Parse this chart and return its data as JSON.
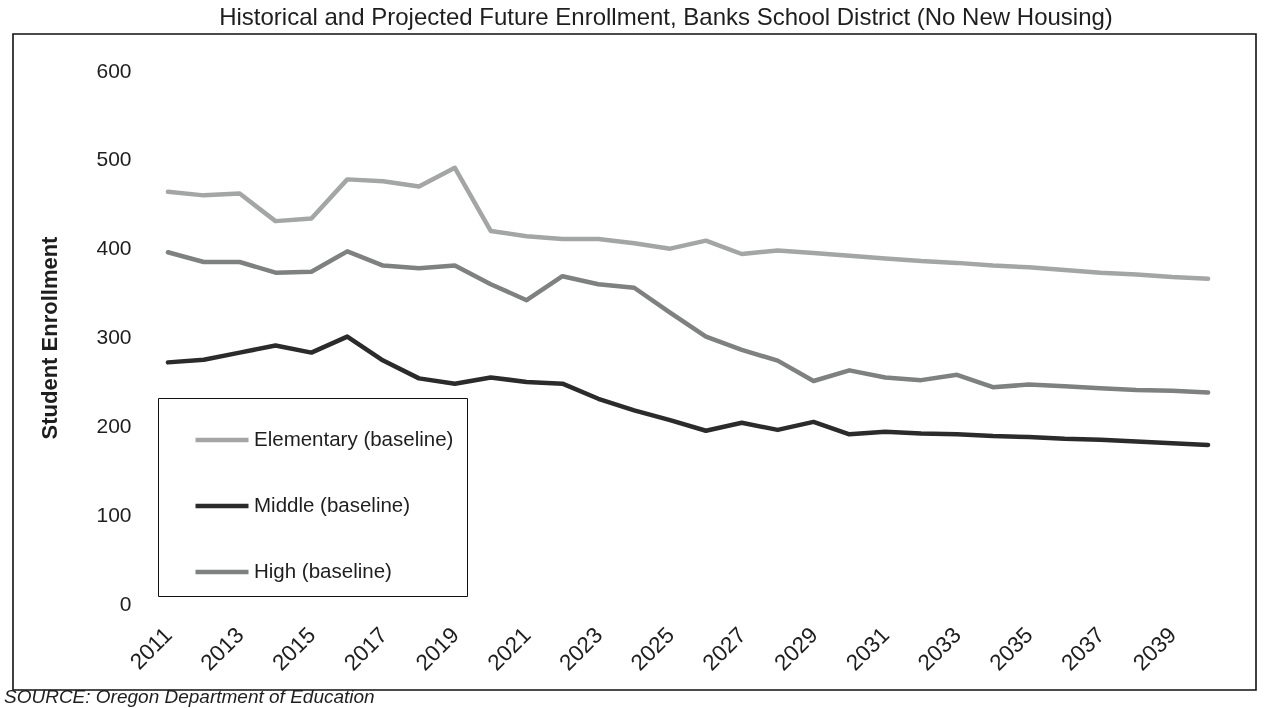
{
  "chart_data": {
    "type": "line",
    "title": "Historical and Projected Future Enrollment, Banks School District (No New Housing)",
    "ylabel": "Student Enrollment",
    "categories": [
      "2011",
      null,
      "2013",
      null,
      "2015",
      null,
      "2017",
      null,
      "2019",
      null,
      "2021",
      null,
      "2023",
      null,
      "2025",
      null,
      "2027",
      null,
      "2029",
      null,
      "2031",
      null,
      "2033",
      null,
      "2035",
      null,
      "2037",
      null,
      "2039",
      null
    ],
    "series": [
      {
        "name": "Elementary (baseline)",
        "color": "#a3a6a4",
        "values": [
          464,
          460,
          462,
          431,
          434,
          478,
          476,
          470,
          491,
          420,
          414,
          411,
          411,
          406,
          400,
          409,
          394,
          398,
          395,
          392,
          389,
          386,
          384,
          381,
          379,
          376,
          373,
          371,
          368,
          366
        ]
      },
      {
        "name": "Middle (baseline)",
        "color": "#2b2b2b",
        "values": [
          272,
          275,
          283,
          291,
          283,
          301,
          274,
          254,
          248,
          255,
          250,
          248,
          231,
          218,
          207,
          195,
          204,
          196,
          205,
          191,
          194,
          192,
          191,
          189,
          188,
          186,
          185,
          183,
          181,
          179
        ]
      },
      {
        "name": "High (baseline)",
        "color": "#7e817f",
        "values": [
          396,
          385,
          385,
          373,
          374,
          397,
          381,
          378,
          381,
          360,
          342,
          369,
          360,
          356,
          328,
          301,
          286,
          274,
          251,
          263,
          255,
          252,
          258,
          244,
          247,
          245,
          243,
          241,
          240,
          238
        ]
      }
    ],
    "ylim": [
      0,
      600
    ],
    "yticks": [
      0,
      100,
      200,
      300,
      400,
      500,
      600
    ],
    "legend": "bottom left",
    "annotations": [
      "SOURCE: Oregon Department of Education"
    ]
  }
}
